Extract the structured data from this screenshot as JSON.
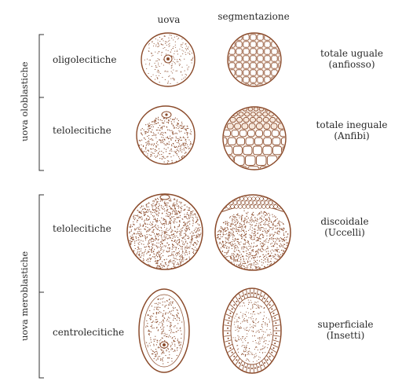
{
  "columns": {
    "egg": "uova",
    "segmentation": "segmentazione"
  },
  "groups": {
    "oloblastiche": "uova oloblastiche",
    "meroblastiche": "uova meroblastiche"
  },
  "rows": [
    {
      "egg_type": "oligolecitiche",
      "segmentation": "totale uguale",
      "example": "(anfiosso)"
    },
    {
      "egg_type": "telolecitiche",
      "segmentation": "totale ineguale",
      "example": "(Anfibi)"
    },
    {
      "egg_type": "telolecitiche",
      "segmentation": "discoidale",
      "example": "(Uccelli)"
    },
    {
      "egg_type": "centrolecitiche",
      "segmentation": "superficiale",
      "example": "(Insetti)"
    }
  ],
  "colors": {
    "ink": "#8a4a2a",
    "text": "#2a2a2a",
    "bracket": "#333333"
  }
}
